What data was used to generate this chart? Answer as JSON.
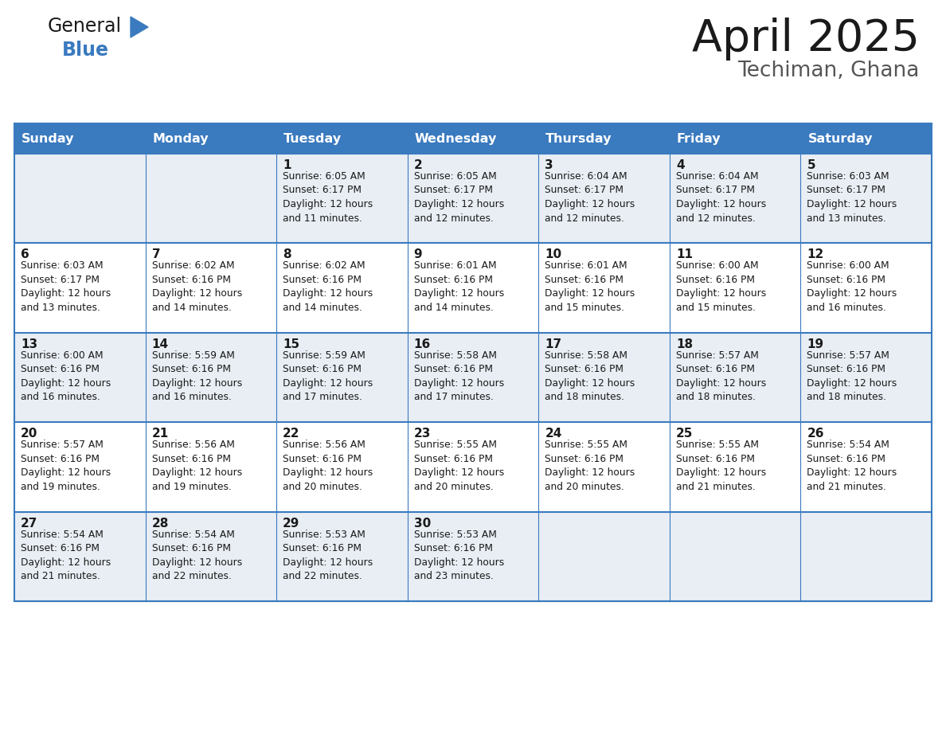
{
  "title": "April 2025",
  "subtitle": "Techiman, Ghana",
  "header_bg": "#3a7abf",
  "header_text": "#ffffff",
  "row_bg": [
    "#e8eef4",
    "#ffffff",
    "#e8eef4",
    "#ffffff",
    "#e8eef4"
  ],
  "cell_border": "#3a7abf",
  "day_headers": [
    "Sunday",
    "Monday",
    "Tuesday",
    "Wednesday",
    "Thursday",
    "Friday",
    "Saturday"
  ],
  "calendar": [
    [
      "",
      "",
      "1\nSunrise: 6:05 AM\nSunset: 6:17 PM\nDaylight: 12 hours\nand 11 minutes.",
      "2\nSunrise: 6:05 AM\nSunset: 6:17 PM\nDaylight: 12 hours\nand 12 minutes.",
      "3\nSunrise: 6:04 AM\nSunset: 6:17 PM\nDaylight: 12 hours\nand 12 minutes.",
      "4\nSunrise: 6:04 AM\nSunset: 6:17 PM\nDaylight: 12 hours\nand 12 minutes.",
      "5\nSunrise: 6:03 AM\nSunset: 6:17 PM\nDaylight: 12 hours\nand 13 minutes."
    ],
    [
      "6\nSunrise: 6:03 AM\nSunset: 6:17 PM\nDaylight: 12 hours\nand 13 minutes.",
      "7\nSunrise: 6:02 AM\nSunset: 6:16 PM\nDaylight: 12 hours\nand 14 minutes.",
      "8\nSunrise: 6:02 AM\nSunset: 6:16 PM\nDaylight: 12 hours\nand 14 minutes.",
      "9\nSunrise: 6:01 AM\nSunset: 6:16 PM\nDaylight: 12 hours\nand 14 minutes.",
      "10\nSunrise: 6:01 AM\nSunset: 6:16 PM\nDaylight: 12 hours\nand 15 minutes.",
      "11\nSunrise: 6:00 AM\nSunset: 6:16 PM\nDaylight: 12 hours\nand 15 minutes.",
      "12\nSunrise: 6:00 AM\nSunset: 6:16 PM\nDaylight: 12 hours\nand 16 minutes."
    ],
    [
      "13\nSunrise: 6:00 AM\nSunset: 6:16 PM\nDaylight: 12 hours\nand 16 minutes.",
      "14\nSunrise: 5:59 AM\nSunset: 6:16 PM\nDaylight: 12 hours\nand 16 minutes.",
      "15\nSunrise: 5:59 AM\nSunset: 6:16 PM\nDaylight: 12 hours\nand 17 minutes.",
      "16\nSunrise: 5:58 AM\nSunset: 6:16 PM\nDaylight: 12 hours\nand 17 minutes.",
      "17\nSunrise: 5:58 AM\nSunset: 6:16 PM\nDaylight: 12 hours\nand 18 minutes.",
      "18\nSunrise: 5:57 AM\nSunset: 6:16 PM\nDaylight: 12 hours\nand 18 minutes.",
      "19\nSunrise: 5:57 AM\nSunset: 6:16 PM\nDaylight: 12 hours\nand 18 minutes."
    ],
    [
      "20\nSunrise: 5:57 AM\nSunset: 6:16 PM\nDaylight: 12 hours\nand 19 minutes.",
      "21\nSunrise: 5:56 AM\nSunset: 6:16 PM\nDaylight: 12 hours\nand 19 minutes.",
      "22\nSunrise: 5:56 AM\nSunset: 6:16 PM\nDaylight: 12 hours\nand 20 minutes.",
      "23\nSunrise: 5:55 AM\nSunset: 6:16 PM\nDaylight: 12 hours\nand 20 minutes.",
      "24\nSunrise: 5:55 AM\nSunset: 6:16 PM\nDaylight: 12 hours\nand 20 minutes.",
      "25\nSunrise: 5:55 AM\nSunset: 6:16 PM\nDaylight: 12 hours\nand 21 minutes.",
      "26\nSunrise: 5:54 AM\nSunset: 6:16 PM\nDaylight: 12 hours\nand 21 minutes."
    ],
    [
      "27\nSunrise: 5:54 AM\nSunset: 6:16 PM\nDaylight: 12 hours\nand 21 minutes.",
      "28\nSunrise: 5:54 AM\nSunset: 6:16 PM\nDaylight: 12 hours\nand 22 minutes.",
      "29\nSunrise: 5:53 AM\nSunset: 6:16 PM\nDaylight: 12 hours\nand 22 minutes.",
      "30\nSunrise: 5:53 AM\nSunset: 6:16 PM\nDaylight: 12 hours\nand 23 minutes.",
      "",
      "",
      ""
    ]
  ],
  "logo_general_color": "#1a1a1a",
  "logo_blue_color": "#3a7abf",
  "logo_triangle_color": "#3a7abf",
  "title_color": "#1a1a1a",
  "subtitle_color": "#555555"
}
